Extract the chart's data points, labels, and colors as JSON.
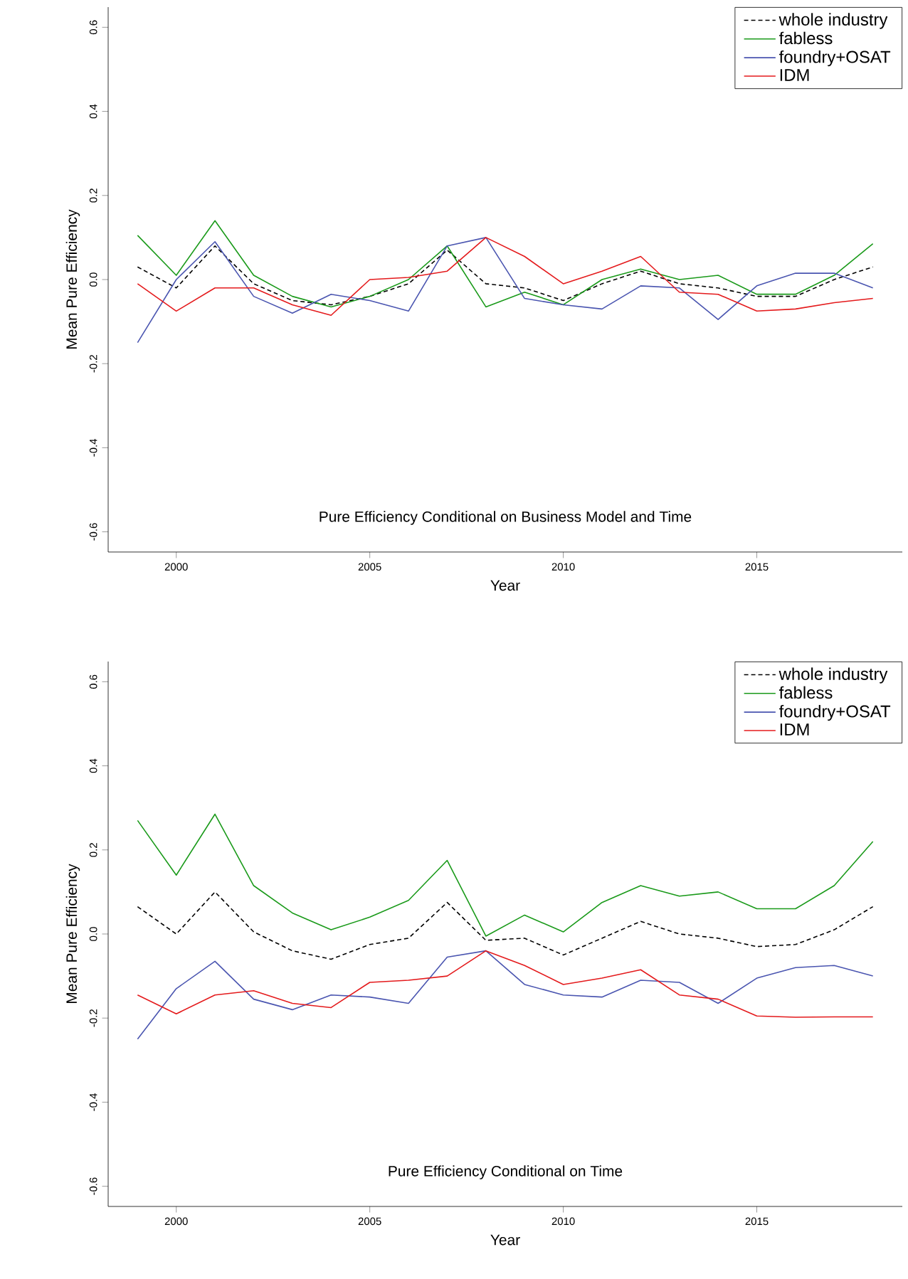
{
  "chart_data": [
    {
      "type": "line",
      "title": "Pure Efficiency Conditional on Business Model and Time",
      "xlabel": "Year",
      "ylabel": "Mean Pure Efficiency",
      "x": [
        1999,
        2000,
        2001,
        2002,
        2003,
        2004,
        2005,
        2006,
        2007,
        2008,
        2009,
        2010,
        2011,
        2012,
        2013,
        2014,
        2015,
        2016,
        2017,
        2018
      ],
      "xlim": [
        1998.24,
        2018.76
      ],
      "xticks": [
        2000,
        2005,
        2010,
        2015
      ],
      "ylim": [
        -0.648,
        0.648
      ],
      "yticks": [
        {
          "value": -0.6,
          "label": "-0.6"
        },
        {
          "value": -0.4,
          "label": "-0.4"
        },
        {
          "value": -0.2,
          "label": "-0.2"
        },
        {
          "value": 0,
          "label": "0.0"
        },
        0.2,
        0.4,
        0.6
      ],
      "legend": "top right",
      "series": [
        {
          "name": "whole industry",
          "color": "#000000",
          "line_style": "dashed",
          "values": [
            0.03,
            -0.02,
            0.08,
            -0.01,
            -0.05,
            -0.06,
            -0.04,
            -0.01,
            0.07,
            -0.01,
            -0.02,
            -0.05,
            -0.01,
            0.02,
            -0.01,
            -0.02,
            -0.04,
            -0.04,
            0.0,
            0.03
          ]
        },
        {
          "name": "fabless",
          "color": "#1a9a1a",
          "line_style": "solid",
          "values": [
            0.105,
            0.01,
            0.14,
            0.01,
            -0.04,
            -0.065,
            -0.04,
            0.0,
            0.08,
            -0.065,
            -0.03,
            -0.06,
            0.0,
            0.025,
            0.0,
            0.01,
            -0.035,
            -0.035,
            0.01,
            0.085
          ]
        },
        {
          "name": "foundry+OSAT",
          "color": "#4a55b0",
          "line_style": "solid",
          "values": [
            -0.15,
            0.0,
            0.09,
            -0.04,
            -0.08,
            -0.035,
            -0.05,
            -0.075,
            0.08,
            0.1,
            -0.045,
            -0.06,
            -0.07,
            -0.015,
            -0.02,
            -0.095,
            -0.015,
            0.015,
            0.015,
            -0.02
          ]
        },
        {
          "name": "IDM",
          "color": "#e41a1c",
          "line_style": "solid",
          "values": [
            -0.01,
            -0.075,
            -0.02,
            -0.02,
            -0.06,
            -0.085,
            0.0,
            0.005,
            0.02,
            0.1,
            0.055,
            -0.01,
            0.02,
            0.055,
            -0.03,
            -0.035,
            -0.075,
            -0.07,
            -0.055,
            -0.045
          ]
        }
      ]
    },
    {
      "type": "line",
      "title": "Pure Efficiency Conditional on Time",
      "xlabel": "Year",
      "ylabel": "Mean Pure Efficiency",
      "x": [
        1999,
        2000,
        2001,
        2002,
        2003,
        2004,
        2005,
        2006,
        2007,
        2008,
        2009,
        2010,
        2011,
        2012,
        2013,
        2014,
        2015,
        2016,
        2017,
        2018
      ],
      "xlim": [
        1998.24,
        2018.76
      ],
      "xticks": [
        2000,
        2005,
        2010,
        2015
      ],
      "ylim": [
        -0.648,
        0.648
      ],
      "yticks": [
        {
          "value": -0.6,
          "label": "-0.6"
        },
        {
          "value": -0.4,
          "label": "-0.4"
        },
        {
          "value": -0.2,
          "label": "-0.2"
        },
        {
          "value": 0,
          "label": "0.0"
        },
        0.2,
        0.4,
        0.6
      ],
      "legend": "top right",
      "series": [
        {
          "name": "whole industry",
          "color": "#000000",
          "line_style": "dashed",
          "values": [
            0.065,
            0.0,
            0.1,
            0.005,
            -0.04,
            -0.06,
            -0.025,
            -0.01,
            0.075,
            -0.015,
            -0.01,
            -0.05,
            -0.01,
            0.03,
            0.0,
            -0.01,
            -0.03,
            -0.025,
            0.01,
            0.065
          ]
        },
        {
          "name": "fabless",
          "color": "#1a9a1a",
          "line_style": "solid",
          "values": [
            0.27,
            0.14,
            0.285,
            0.115,
            0.05,
            0.01,
            0.04,
            0.08,
            0.175,
            -0.005,
            0.045,
            0.005,
            0.075,
            0.115,
            0.09,
            0.1,
            0.06,
            0.06,
            0.115,
            0.22
          ]
        },
        {
          "name": "foundry+OSAT",
          "color": "#4a55b0",
          "line_style": "solid",
          "values": [
            -0.25,
            -0.13,
            -0.065,
            -0.155,
            -0.18,
            -0.145,
            -0.15,
            -0.165,
            -0.055,
            -0.04,
            -0.12,
            -0.145,
            -0.15,
            -0.11,
            -0.115,
            -0.165,
            -0.105,
            -0.08,
            -0.075,
            -0.1
          ]
        },
        {
          "name": "IDM",
          "color": "#e41a1c",
          "line_style": "solid",
          "values": [
            -0.145,
            -0.19,
            -0.145,
            -0.135,
            -0.165,
            -0.175,
            -0.115,
            -0.11,
            -0.1,
            -0.04,
            -0.075,
            -0.12,
            -0.105,
            -0.085,
            -0.145,
            -0.155,
            -0.195,
            -0.198,
            -0.197,
            -0.197
          ]
        }
      ]
    }
  ]
}
